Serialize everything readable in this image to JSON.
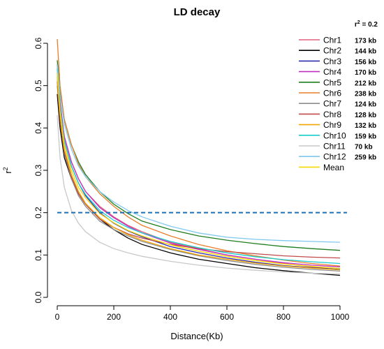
{
  "chart_data": {
    "type": "line",
    "title": "LD decay",
    "xlabel": "Distance(Kb)",
    "ylabel": "r",
    "ylabel_sup": "2",
    "xlim": [
      0,
      1000
    ],
    "ylim": [
      0.0,
      0.6
    ],
    "xticks": [
      0,
      200,
      400,
      600,
      800,
      1000
    ],
    "yticks": [
      0.0,
      0.1,
      0.2,
      0.3,
      0.4,
      0.5,
      0.6
    ],
    "grid": false,
    "legend_position": "top-right",
    "threshold": {
      "value": 0.2,
      "label_base": "r",
      "label_sup": "2",
      "label_rest": " = 0.2",
      "color": "#1a6fb5"
    },
    "x": [
      0,
      10,
      25,
      50,
      75,
      100,
      150,
      200,
      250,
      300,
      400,
      500,
      600,
      700,
      800,
      900,
      1000
    ],
    "series": [
      {
        "name": "Chr1",
        "decay_label": "173 kb",
        "color": "#e0607e",
        "values": [
          0.55,
          0.46,
          0.38,
          0.32,
          0.28,
          0.25,
          0.215,
          0.19,
          0.17,
          0.155,
          0.13,
          0.115,
          0.1,
          0.09,
          0.08,
          0.072,
          0.065
        ]
      },
      {
        "name": "Chr2",
        "decay_label": "144 kb",
        "color": "#000000",
        "values": [
          0.48,
          0.4,
          0.33,
          0.28,
          0.245,
          0.22,
          0.185,
          0.16,
          0.14,
          0.125,
          0.105,
          0.09,
          0.08,
          0.07,
          0.063,
          0.057,
          0.052
        ]
      },
      {
        "name": "Chr3",
        "decay_label": "156 kb",
        "color": "#2b2bb0",
        "values": [
          0.53,
          0.45,
          0.37,
          0.31,
          0.27,
          0.24,
          0.2,
          0.175,
          0.157,
          0.143,
          0.12,
          0.105,
          0.093,
          0.083,
          0.075,
          0.07,
          0.066
        ]
      },
      {
        "name": "Chr4",
        "decay_label": "170 kb",
        "color": "#c030c0",
        "values": [
          0.55,
          0.46,
          0.38,
          0.32,
          0.28,
          0.25,
          0.212,
          0.188,
          0.168,
          0.152,
          0.128,
          0.113,
          0.1,
          0.09,
          0.082,
          0.076,
          0.072
        ]
      },
      {
        "name": "Chr5",
        "decay_label": "212 kb",
        "color": "#1e7d1e",
        "values": [
          0.56,
          0.49,
          0.42,
          0.36,
          0.32,
          0.29,
          0.25,
          0.22,
          0.198,
          0.18,
          0.16,
          0.145,
          0.135,
          0.127,
          0.12,
          0.115,
          0.111
        ]
      },
      {
        "name": "Chr6",
        "decay_label": "238 kb",
        "color": "#e87e2a",
        "values": [
          0.61,
          0.5,
          0.42,
          0.36,
          0.315,
          0.285,
          0.245,
          0.215,
          0.19,
          0.17,
          0.145,
          0.125,
          0.11,
          0.098,
          0.088,
          0.08,
          0.074
        ]
      },
      {
        "name": "Chr7",
        "decay_label": "124 kb",
        "color": "#8c8c8c",
        "values": [
          0.5,
          0.42,
          0.34,
          0.28,
          0.24,
          0.215,
          0.18,
          0.16,
          0.145,
          0.132,
          0.113,
          0.098,
          0.087,
          0.078,
          0.071,
          0.066,
          0.062
        ]
      },
      {
        "name": "Chr8",
        "decay_label": "128 kb",
        "color": "#c24a4a",
        "values": [
          0.51,
          0.42,
          0.345,
          0.285,
          0.245,
          0.22,
          0.185,
          0.165,
          0.15,
          0.14,
          0.125,
          0.115,
          0.108,
          0.103,
          0.098,
          0.095,
          0.093
        ]
      },
      {
        "name": "Chr9",
        "decay_label": "132 kb",
        "color": "#f2a500",
        "values": [
          0.52,
          0.43,
          0.35,
          0.29,
          0.25,
          0.222,
          0.188,
          0.165,
          0.148,
          0.135,
          0.115,
          0.1,
          0.09,
          0.081,
          0.074,
          0.069,
          0.065
        ]
      },
      {
        "name": "Chr10",
        "decay_label": "159 kb",
        "color": "#18cccc",
        "values": [
          0.54,
          0.45,
          0.37,
          0.31,
          0.27,
          0.243,
          0.205,
          0.182,
          0.165,
          0.152,
          0.132,
          0.117,
          0.105,
          0.096,
          0.089,
          0.084,
          0.08
        ]
      },
      {
        "name": "Chr11",
        "decay_label": "70 kb",
        "color": "#c8c8c8",
        "values": [
          0.43,
          0.33,
          0.26,
          0.205,
          0.175,
          0.155,
          0.13,
          0.115,
          0.105,
          0.097,
          0.085,
          0.076,
          0.069,
          0.064,
          0.06,
          0.057,
          0.055
        ]
      },
      {
        "name": "Chr12",
        "decay_label": "259 kb",
        "color": "#7ec8f0",
        "values": [
          0.55,
          0.48,
          0.41,
          0.35,
          0.31,
          0.285,
          0.25,
          0.225,
          0.205,
          0.19,
          0.168,
          0.152,
          0.142,
          0.137,
          0.134,
          0.132,
          0.13
        ]
      },
      {
        "name": "Mean",
        "decay_label": "",
        "color": "#f5d800",
        "values": [
          0.53,
          0.44,
          0.36,
          0.3,
          0.26,
          0.235,
          0.198,
          0.176,
          0.158,
          0.145,
          0.124,
          0.109,
          0.097,
          0.087,
          0.079,
          0.073,
          0.068
        ]
      }
    ]
  }
}
